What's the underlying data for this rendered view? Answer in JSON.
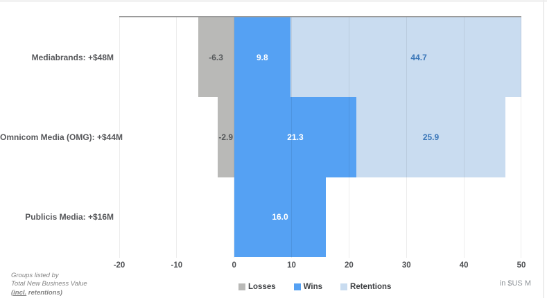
{
  "chart_data": {
    "type": "bar",
    "variant": "horizontal_stacked",
    "categories": [
      "Mediabrands: +$48M",
      "Omnicom Media (OMG): +$44M",
      "Publicis Media: +$16M"
    ],
    "series": [
      {
        "name": "Losses",
        "values": [
          -6.3,
          -2.9,
          null
        ],
        "color": "#b9b9b7",
        "label_color": "#55585a"
      },
      {
        "name": "Wins",
        "values": [
          9.8,
          21.3,
          16.0
        ],
        "color": "#55a1f3",
        "label_color": "#ffffff"
      },
      {
        "name": "Retentions",
        "values": [
          44.7,
          25.9,
          null
        ],
        "color": "#c9dcf0",
        "label_color": "#3a76b8"
      }
    ],
    "xlim": [
      -20,
      50
    ],
    "xticks": [
      -20,
      -10,
      0,
      10,
      20,
      30,
      40,
      50
    ],
    "grid": true,
    "legend_position": "bottom-center",
    "xlabel": "",
    "ylabel": "",
    "title": ""
  },
  "unit_note": "in $US M",
  "footnote": {
    "line1": "Groups listed by",
    "line2": "Total New Business Value",
    "line3_underlined": "(incl.",
    "line3_rest": " retentions)"
  }
}
